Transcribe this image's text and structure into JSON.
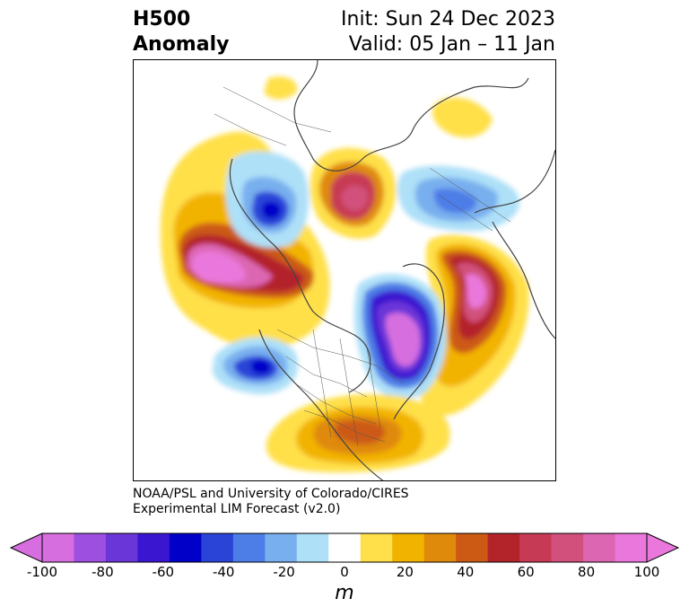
{
  "title": {
    "left_line1": "H500",
    "left_line2": "Anomaly",
    "right_line1": "Init: Sun 24 Dec 2023",
    "right_line2": "Valid: 05 Jan – 11 Jan"
  },
  "credit": {
    "line1": "NOAA/PSL and University of Colorado/CIRES",
    "line2": "Experimental LIM Forecast (v2.0)"
  },
  "colorbar": {
    "unit": "m",
    "ticks": [
      "-100",
      "-80",
      "-60",
      "-40",
      "-20",
      "0",
      "20",
      "40",
      "60",
      "80",
      "100"
    ],
    "levels": [
      -100,
      -90,
      -80,
      -70,
      -60,
      -50,
      -40,
      -30,
      -20,
      -10,
      10,
      20,
      30,
      40,
      50,
      60,
      70,
      80,
      90,
      100
    ],
    "colors": [
      "#d76ee0",
      "#9d4fe0",
      "#6a36d8",
      "#3a16d0",
      "#0000c8",
      "#2a44d8",
      "#4d7de6",
      "#78afee",
      "#aee0f8",
      "#ffffff",
      "#ffe04a",
      "#f2b300",
      "#df8a0a",
      "#cc5a14",
      "#b3232a",
      "#c73a55",
      "#d1517c",
      "#dc66b2",
      "#ea78dc"
    ],
    "min_color": "#d76ee0",
    "max_color": "#ea78dc"
  },
  "map": {
    "projection": "north-polar-stereographic",
    "variable": "500 hPa geopotential height anomaly"
  }
}
